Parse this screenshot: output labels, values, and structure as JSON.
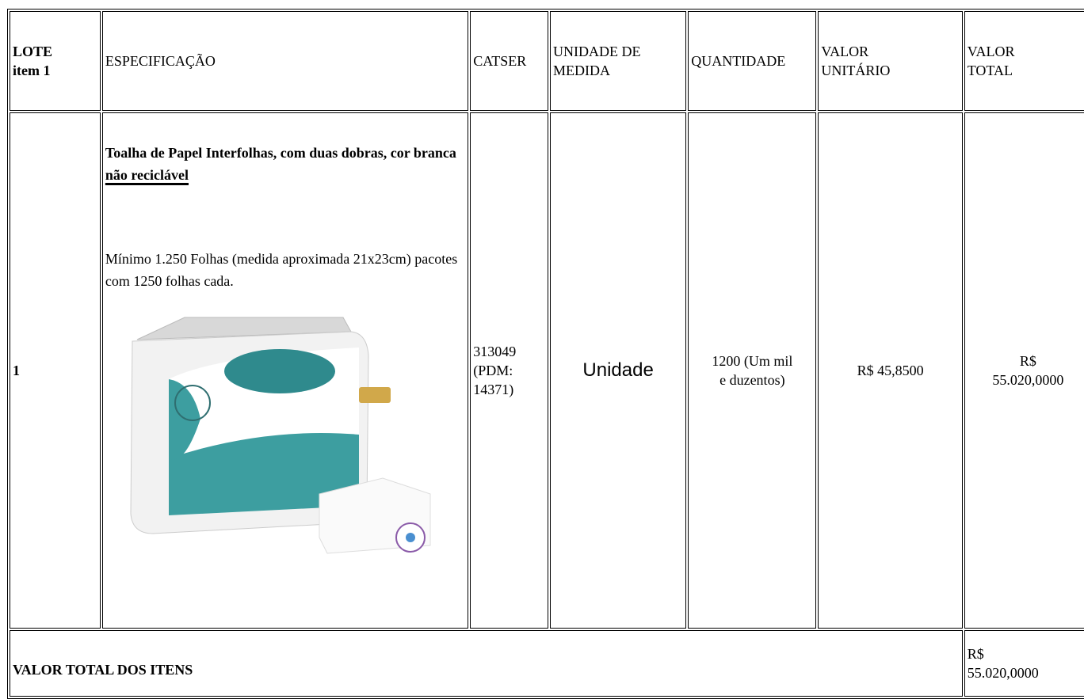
{
  "table": {
    "header": [
      [
        "LOTE",
        "item 1"
      ],
      [
        "ESPECIFICAÇÃO"
      ],
      [
        "CATSER"
      ],
      [
        "UNIDADE DE",
        "MEDIDA"
      ],
      [
        "QUANTIDADE"
      ],
      [
        "VALOR",
        "UNITÁRIO"
      ],
      [
        "VALOR",
        "TOTAL"
      ]
    ],
    "row": {
      "item": "1",
      "spec_title": "Toalha de Papel Interfolhas, com duas dobras, cor branca",
      "spec_title_underlined": "não reciclável",
      "spec_description": "Mínimo 1.250 Folhas (medida aproximada 21x23cm) pacotes com 1250 folhas cada.",
      "catser": [
        "313049",
        "(PDM:",
        "14371)"
      ],
      "unit": "Unidade",
      "quantity": [
        "1200 (Um mil",
        "e duzentos)"
      ],
      "unit_value": "R$ 45,8500",
      "total_value": [
        "R$",
        "55.020,0000"
      ]
    },
    "footer": {
      "label": "VALOR TOTAL DOS ITENS",
      "total": [
        "R$",
        "55.020,0000"
      ]
    }
  }
}
